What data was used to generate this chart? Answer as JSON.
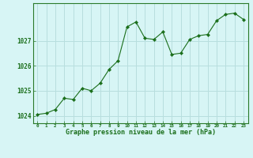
{
  "x": [
    0,
    1,
    2,
    3,
    4,
    5,
    6,
    7,
    8,
    9,
    10,
    11,
    12,
    13,
    14,
    15,
    16,
    17,
    18,
    19,
    20,
    21,
    22,
    23
  ],
  "y": [
    1024.05,
    1024.1,
    1024.25,
    1024.7,
    1024.65,
    1025.1,
    1025.0,
    1025.3,
    1025.85,
    1026.2,
    1027.55,
    1027.75,
    1027.1,
    1027.05,
    1027.35,
    1026.45,
    1026.5,
    1027.05,
    1027.2,
    1027.25,
    1027.8,
    1028.05,
    1028.1,
    1027.85
  ],
  "line_color": "#1a6e1a",
  "marker": "D",
  "marker_size": 2.2,
  "bg_color": "#d7f5f5",
  "grid_color": "#b8dede",
  "axis_label_color": "#1a6e1a",
  "tick_label_color": "#1a6e1a",
  "xlabel": "Graphe pression niveau de la mer (hPa)",
  "ylim": [
    1023.7,
    1028.5
  ],
  "yticks": [
    1024,
    1025,
    1026,
    1027
  ],
  "xticks": [
    0,
    1,
    2,
    3,
    4,
    5,
    6,
    7,
    8,
    9,
    10,
    11,
    12,
    13,
    14,
    15,
    16,
    17,
    18,
    19,
    20,
    21,
    22,
    23
  ],
  "border_color": "#2a7a2a"
}
